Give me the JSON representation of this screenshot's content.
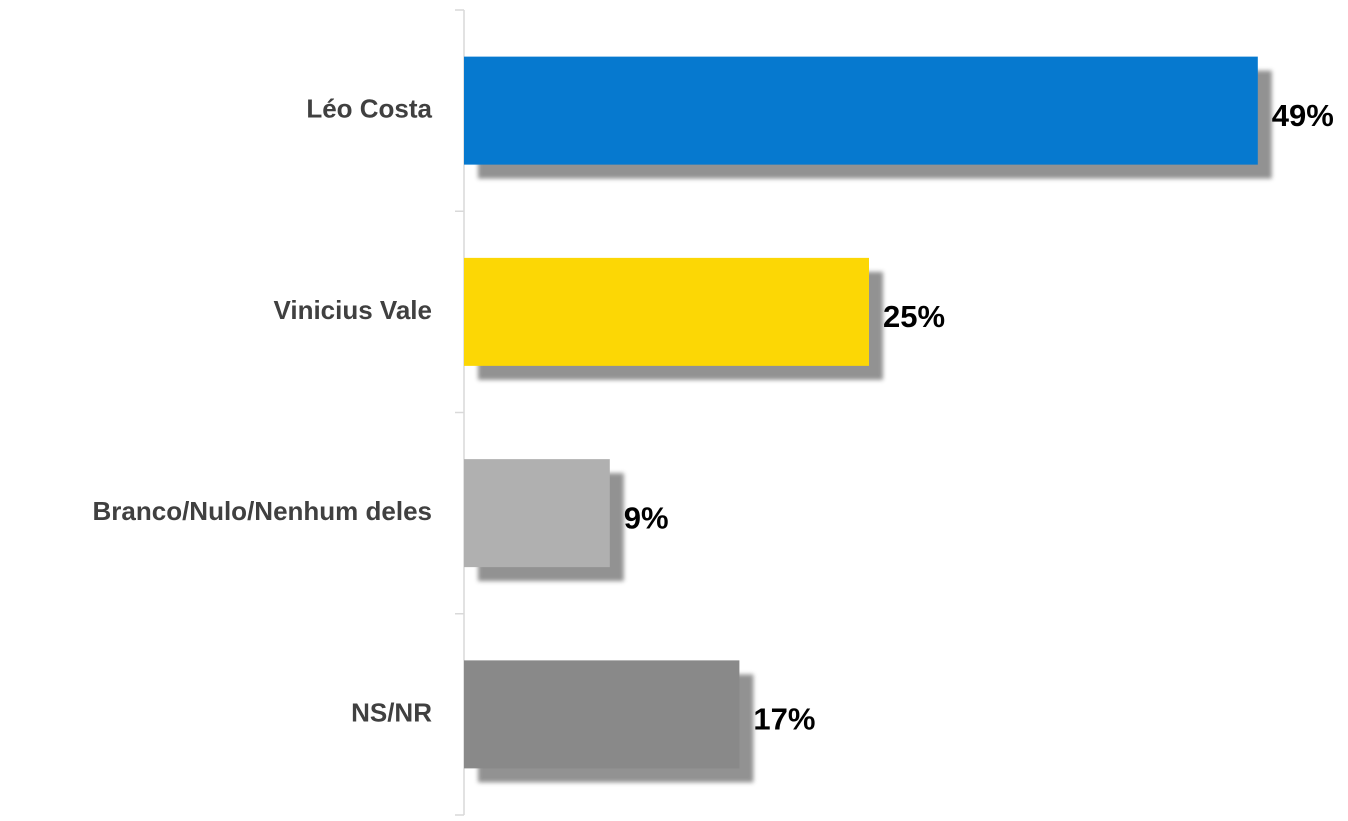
{
  "chart_data": {
    "type": "bar",
    "orientation": "horizontal",
    "categories": [
      "Léo Costa",
      "Vinicius Vale",
      "Branco/Nulo/Nenhum deles",
      "NS/NR"
    ],
    "values": [
      49,
      25,
      9,
      17
    ],
    "value_labels": [
      "49%",
      "25%",
      "9%",
      "17%"
    ],
    "colors": [
      "#0679cf",
      "#fcd705",
      "#b0b0b0",
      "#898989"
    ]
  }
}
